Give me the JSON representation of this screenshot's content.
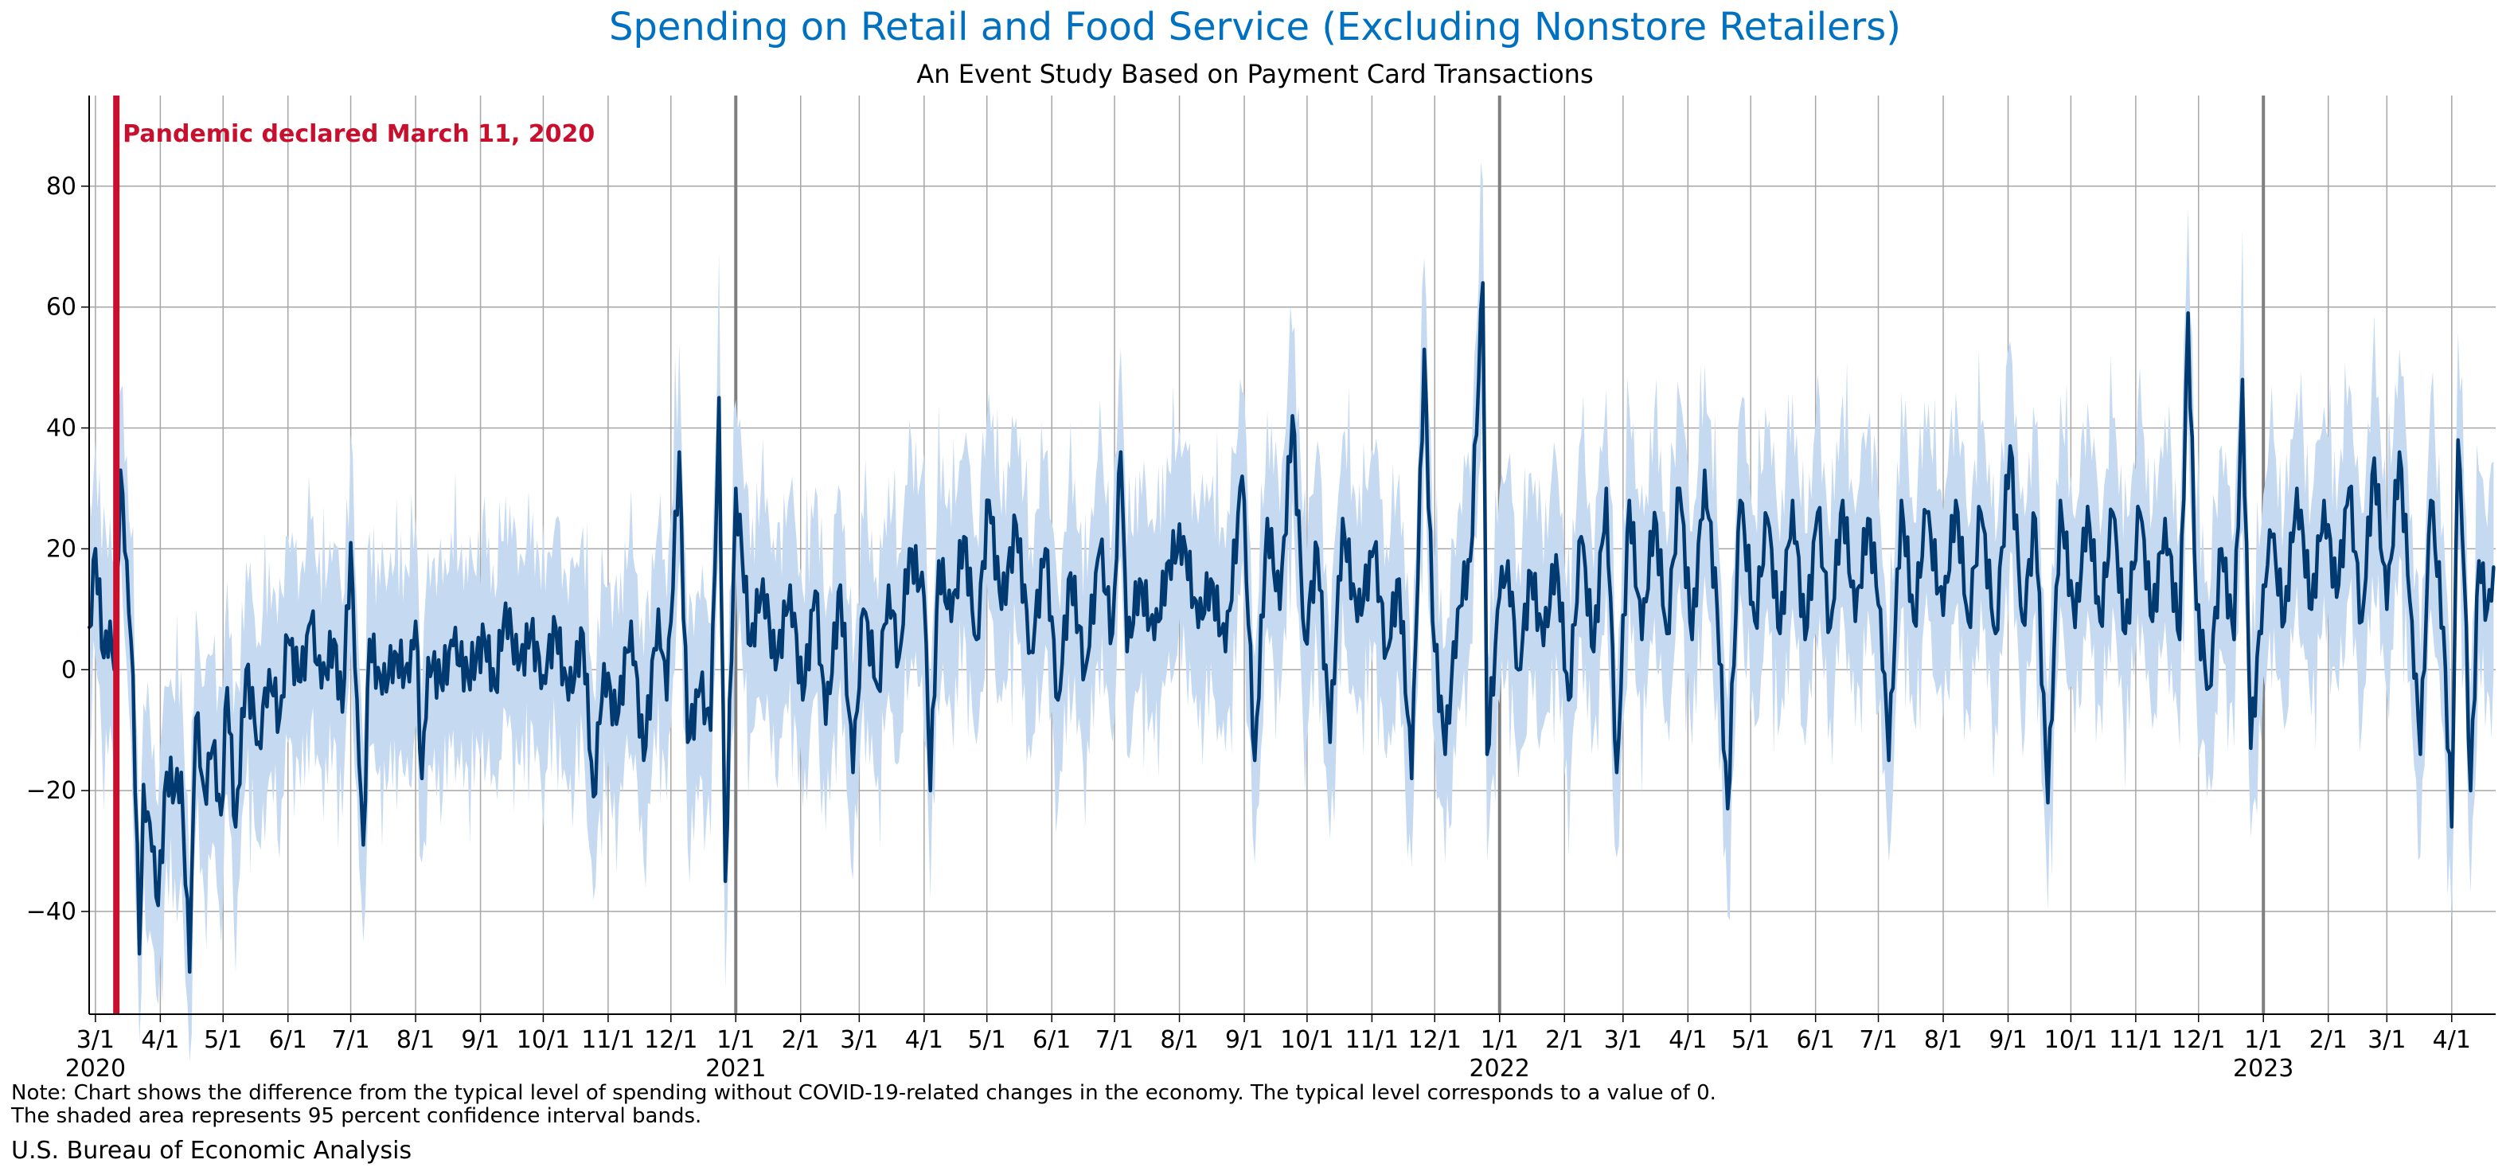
{
  "chart_data": {
    "type": "area",
    "title": "Spending on Retail and Food Service (Excluding Nonstore Retailers)",
    "subtitle": "An Event Study Based on Payment Card Transactions",
    "xlabel": "",
    "ylabel": "",
    "x_range": [
      "2020-02-27",
      "2023-04-22"
    ],
    "ylim": [
      -57,
      95
    ],
    "y_ticks": [
      -40,
      -20,
      0,
      20,
      40,
      60,
      80
    ],
    "grid": true,
    "legend": "none",
    "x_ticks": [
      {
        "date": "2020-03-01",
        "label": "3/1",
        "year": "2020"
      },
      {
        "date": "2020-04-01",
        "label": "4/1"
      },
      {
        "date": "2020-05-01",
        "label": "5/1"
      },
      {
        "date": "2020-06-01",
        "label": "6/1"
      },
      {
        "date": "2020-07-01",
        "label": "7/1"
      },
      {
        "date": "2020-08-01",
        "label": "8/1"
      },
      {
        "date": "2020-09-01",
        "label": "9/1"
      },
      {
        "date": "2020-10-01",
        "label": "10/1"
      },
      {
        "date": "2020-11-01",
        "label": "11/1"
      },
      {
        "date": "2020-12-01",
        "label": "12/1"
      },
      {
        "date": "2021-01-01",
        "label": "1/1",
        "year": "2021",
        "major": true
      },
      {
        "date": "2021-02-01",
        "label": "2/1"
      },
      {
        "date": "2021-03-01",
        "label": "3/1"
      },
      {
        "date": "2021-04-01",
        "label": "4/1"
      },
      {
        "date": "2021-05-01",
        "label": "5/1"
      },
      {
        "date": "2021-06-01",
        "label": "6/1"
      },
      {
        "date": "2021-07-01",
        "label": "7/1"
      },
      {
        "date": "2021-08-01",
        "label": "8/1"
      },
      {
        "date": "2021-09-01",
        "label": "9/1"
      },
      {
        "date": "2021-10-01",
        "label": "10/1"
      },
      {
        "date": "2021-11-01",
        "label": "11/1"
      },
      {
        "date": "2021-12-01",
        "label": "12/1"
      },
      {
        "date": "2022-01-01",
        "label": "1/1",
        "year": "2022",
        "major": true
      },
      {
        "date": "2022-02-01",
        "label": "2/1"
      },
      {
        "date": "2022-03-01",
        "label": "3/1"
      },
      {
        "date": "2022-04-01",
        "label": "4/1"
      },
      {
        "date": "2022-05-01",
        "label": "5/1"
      },
      {
        "date": "2022-06-01",
        "label": "6/1"
      },
      {
        "date": "2022-07-01",
        "label": "7/1"
      },
      {
        "date": "2022-08-01",
        "label": "8/1"
      },
      {
        "date": "2022-09-01",
        "label": "9/1"
      },
      {
        "date": "2022-10-01",
        "label": "10/1"
      },
      {
        "date": "2022-11-01",
        "label": "11/1"
      },
      {
        "date": "2022-12-01",
        "label": "12/1"
      },
      {
        "date": "2023-01-01",
        "label": "1/1",
        "year": "2023",
        "major": true
      },
      {
        "date": "2023-02-01",
        "label": "2/1"
      },
      {
        "date": "2023-03-01",
        "label": "3/1"
      },
      {
        "date": "2023-04-01",
        "label": "4/1"
      }
    ],
    "annotation": {
      "date": "2020-03-11",
      "text": "Pandemic declared March 11, 2020"
    },
    "series": [
      {
        "points": [
          [
            "2020-02-27",
            7
          ],
          [
            "2020-03-01",
            20
          ],
          [
            "2020-03-05",
            2
          ],
          [
            "2020-03-08",
            8
          ],
          [
            "2020-03-10",
            0
          ],
          [
            "2020-03-13",
            33
          ],
          [
            "2020-03-16",
            18
          ],
          [
            "2020-03-19",
            -1
          ],
          [
            "2020-03-22",
            -47
          ],
          [
            "2020-03-24",
            -19
          ],
          [
            "2020-03-28",
            -30
          ],
          [
            "2020-03-31",
            -39
          ],
          [
            "2020-04-04",
            -17
          ],
          [
            "2020-04-08",
            -20
          ],
          [
            "2020-04-11",
            -17
          ],
          [
            "2020-04-15",
            -50
          ],
          [
            "2020-04-18",
            -8
          ],
          [
            "2020-04-22",
            -20
          ],
          [
            "2020-04-26",
            -13
          ],
          [
            "2020-04-30",
            -24
          ],
          [
            "2020-05-03",
            -3
          ],
          [
            "2020-05-07",
            -26
          ],
          [
            "2020-05-12",
            0
          ],
          [
            "2020-05-18",
            -12
          ],
          [
            "2020-05-23",
            0
          ],
          [
            "2020-05-28",
            -8
          ],
          [
            "2020-06-01",
            5
          ],
          [
            "2020-06-07",
            -2
          ],
          [
            "2020-06-12",
            8
          ],
          [
            "2020-06-17",
            -3
          ],
          [
            "2020-06-23",
            5
          ],
          [
            "2020-06-27",
            -7
          ],
          [
            "2020-07-01",
            21
          ],
          [
            "2020-07-04",
            -5
          ],
          [
            "2020-07-07",
            -29
          ],
          [
            "2020-07-10",
            5
          ],
          [
            "2020-07-16",
            -4
          ],
          [
            "2020-07-22",
            3
          ],
          [
            "2020-07-29",
            -2
          ],
          [
            "2020-08-01",
            8
          ],
          [
            "2020-08-04",
            -18
          ],
          [
            "2020-08-07",
            2
          ],
          [
            "2020-08-13",
            -2
          ],
          [
            "2020-08-19",
            4
          ],
          [
            "2020-08-26",
            -1
          ],
          [
            "2020-09-03",
            5
          ],
          [
            "2020-09-08",
            -3
          ],
          [
            "2020-09-13",
            11
          ],
          [
            "2020-09-19",
            0
          ],
          [
            "2020-09-25",
            6
          ],
          [
            "2020-10-01",
            -1
          ],
          [
            "2020-10-07",
            7
          ],
          [
            "2020-10-13",
            -5
          ],
          [
            "2020-10-20",
            6
          ],
          [
            "2020-10-25",
            -21
          ],
          [
            "2020-10-30",
            1
          ],
          [
            "2020-11-05",
            -9
          ],
          [
            "2020-11-12",
            8
          ],
          [
            "2020-11-18",
            -15
          ],
          [
            "2020-11-25",
            10
          ],
          [
            "2020-11-29",
            -5
          ],
          [
            "2020-12-05",
            36
          ],
          [
            "2020-12-09",
            -12
          ],
          [
            "2020-12-15",
            -3
          ],
          [
            "2020-12-20",
            -10
          ],
          [
            "2020-12-24",
            45
          ],
          [
            "2020-12-27",
            -35
          ],
          [
            "2021-01-01",
            30
          ],
          [
            "2021-01-04",
            19
          ],
          [
            "2021-01-08",
            4
          ],
          [
            "2021-01-14",
            15
          ],
          [
            "2021-01-20",
            0
          ],
          [
            "2021-01-27",
            14
          ],
          [
            "2021-02-02",
            -5
          ],
          [
            "2021-02-08",
            13
          ],
          [
            "2021-02-13",
            -9
          ],
          [
            "2021-02-20",
            14
          ],
          [
            "2021-02-26",
            -17
          ],
          [
            "2021-03-03",
            10
          ],
          [
            "2021-03-10",
            -3
          ],
          [
            "2021-03-15",
            14
          ],
          [
            "2021-03-20",
            2
          ],
          [
            "2021-03-25",
            20
          ],
          [
            "2021-04-01",
            12
          ],
          [
            "2021-04-04",
            -20
          ],
          [
            "2021-04-08",
            18
          ],
          [
            "2021-04-14",
            8
          ],
          [
            "2021-04-20",
            22
          ],
          [
            "2021-04-26",
            5
          ],
          [
            "2021-05-02",
            28
          ],
          [
            "2021-05-08",
            10
          ],
          [
            "2021-05-15",
            24
          ],
          [
            "2021-05-22",
            3
          ],
          [
            "2021-05-29",
            20
          ],
          [
            "2021-06-04",
            -5
          ],
          [
            "2021-06-10",
            16
          ],
          [
            "2021-06-17",
            0
          ],
          [
            "2021-06-24",
            20
          ],
          [
            "2021-06-30",
            6
          ],
          [
            "2021-07-04",
            36
          ],
          [
            "2021-07-07",
            3
          ],
          [
            "2021-07-13",
            15
          ],
          [
            "2021-07-20",
            5
          ],
          [
            "2021-07-27",
            18
          ],
          [
            "2021-08-03",
            22
          ],
          [
            "2021-08-10",
            7
          ],
          [
            "2021-08-16",
            15
          ],
          [
            "2021-08-23",
            3
          ],
          [
            "2021-08-31",
            32
          ],
          [
            "2021-09-06",
            -15
          ],
          [
            "2021-09-12",
            25
          ],
          [
            "2021-09-18",
            10
          ],
          [
            "2021-09-24",
            42
          ],
          [
            "2021-09-30",
            5
          ],
          [
            "2021-10-06",
            20
          ],
          [
            "2021-10-12",
            -12
          ],
          [
            "2021-10-18",
            25
          ],
          [
            "2021-10-25",
            8
          ],
          [
            "2021-11-02",
            20
          ],
          [
            "2021-11-08",
            3
          ],
          [
            "2021-11-14",
            15
          ],
          [
            "2021-11-20",
            -18
          ],
          [
            "2021-11-26",
            53
          ],
          [
            "2021-11-30",
            8
          ],
          [
            "2021-12-06",
            -14
          ],
          [
            "2021-12-12",
            10
          ],
          [
            "2021-12-18",
            18
          ],
          [
            "2021-12-24",
            64
          ],
          [
            "2021-12-26",
            -14
          ],
          [
            "2022-01-01",
            12
          ],
          [
            "2022-01-05",
            18
          ],
          [
            "2022-01-10",
            0
          ],
          [
            "2022-01-16",
            16
          ],
          [
            "2022-01-22",
            4
          ],
          [
            "2022-01-28",
            19
          ],
          [
            "2022-02-03",
            -5
          ],
          [
            "2022-02-09",
            22
          ],
          [
            "2022-02-15",
            3
          ],
          [
            "2022-02-21",
            30
          ],
          [
            "2022-02-26",
            -17
          ],
          [
            "2022-03-04",
            28
          ],
          [
            "2022-03-10",
            5
          ],
          [
            "2022-03-16",
            26
          ],
          [
            "2022-03-22",
            6
          ],
          [
            "2022-03-28",
            30
          ],
          [
            "2022-04-03",
            5
          ],
          [
            "2022-04-09",
            33
          ],
          [
            "2022-04-15",
            10
          ],
          [
            "2022-04-20",
            -23
          ],
          [
            "2022-04-26",
            28
          ],
          [
            "2022-05-03",
            8
          ],
          [
            "2022-05-09",
            25
          ],
          [
            "2022-05-15",
            6
          ],
          [
            "2022-05-21",
            28
          ],
          [
            "2022-05-27",
            5
          ],
          [
            "2022-06-02",
            26
          ],
          [
            "2022-06-08",
            7
          ],
          [
            "2022-06-14",
            28
          ],
          [
            "2022-06-20",
            8
          ],
          [
            "2022-06-26",
            25
          ],
          [
            "2022-07-02",
            10
          ],
          [
            "2022-07-06",
            -15
          ],
          [
            "2022-07-12",
            28
          ],
          [
            "2022-07-18",
            8
          ],
          [
            "2022-07-24",
            26
          ],
          [
            "2022-08-01",
            9
          ],
          [
            "2022-08-07",
            28
          ],
          [
            "2022-08-13",
            8
          ],
          [
            "2022-08-19",
            26
          ],
          [
            "2022-08-26",
            6
          ],
          [
            "2022-09-02",
            37
          ],
          [
            "2022-09-08",
            8
          ],
          [
            "2022-09-14",
            25
          ],
          [
            "2022-09-20",
            -22
          ],
          [
            "2022-09-26",
            28
          ],
          [
            "2022-10-03",
            7
          ],
          [
            "2022-10-09",
            27
          ],
          [
            "2022-10-15",
            8
          ],
          [
            "2022-10-21",
            26
          ],
          [
            "2022-10-27",
            6
          ],
          [
            "2022-11-03",
            26
          ],
          [
            "2022-11-09",
            8
          ],
          [
            "2022-11-15",
            25
          ],
          [
            "2022-11-22",
            5
          ],
          [
            "2022-11-26",
            59
          ],
          [
            "2022-11-30",
            10
          ],
          [
            "2022-12-06",
            -3
          ],
          [
            "2022-12-12",
            20
          ],
          [
            "2022-12-18",
            5
          ],
          [
            "2022-12-22",
            48
          ],
          [
            "2022-12-26",
            -13
          ],
          [
            "2023-01-01",
            14
          ],
          [
            "2023-01-05",
            22
          ],
          [
            "2023-01-11",
            8
          ],
          [
            "2023-01-17",
            30
          ],
          [
            "2023-01-24",
            10
          ],
          [
            "2023-01-30",
            28
          ],
          [
            "2023-02-05",
            12
          ],
          [
            "2023-02-11",
            30
          ],
          [
            "2023-02-17",
            8
          ],
          [
            "2023-02-23",
            35
          ],
          [
            "2023-03-01",
            10
          ],
          [
            "2023-03-07",
            36
          ],
          [
            "2023-03-13",
            8
          ],
          [
            "2023-03-17",
            -14
          ],
          [
            "2023-03-22",
            28
          ],
          [
            "2023-03-28",
            7
          ],
          [
            "2023-04-01",
            -26
          ],
          [
            "2023-04-04",
            38
          ],
          [
            "2023-04-07",
            15
          ],
          [
            "2023-04-10",
            -20
          ],
          [
            "2023-04-14",
            18
          ],
          [
            "2023-04-18",
            10
          ],
          [
            "2023-04-21",
            17
          ]
        ]
      }
    ]
  },
  "note_line1": "Note: Chart shows the difference from the typical level of spending without COVID-19-related changes in the economy. The typical level corresponds to a value of 0.",
  "note_line2": "The shaded area represents 95 percent confidence interval bands.",
  "source": "U.S. Bureau of Economic Analysis",
  "colors": {
    "title": "#0070c0",
    "line": "#003a70",
    "band": "#c5d9f1",
    "annotation": "#c8102e",
    "grid": "#a6a6a6",
    "year_line": "#7f7f7f"
  }
}
